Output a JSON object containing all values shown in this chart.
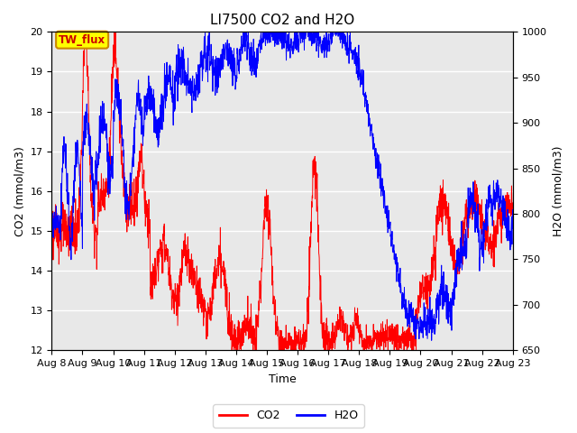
{
  "title": "LI7500 CO2 and H2O",
  "xlabel": "Time",
  "ylabel_left": "CO2 (mmol/m3)",
  "ylabel_right": "H2O (mmol/m3)",
  "co2_ylim": [
    12.0,
    20.0
  ],
  "h2o_ylim": [
    650,
    1000
  ],
  "co2_yticks": [
    12.0,
    13.0,
    14.0,
    15.0,
    16.0,
    17.0,
    18.0,
    19.0,
    20.0
  ],
  "h2o_yticks": [
    650,
    700,
    750,
    800,
    850,
    900,
    950,
    1000
  ],
  "co2_color": "#ff0000",
  "h2o_color": "#0000ff",
  "annotation_text": "TW_flux",
  "plot_bg_color": "#e8e8e8",
  "xtick_labels": [
    "Aug 8",
    "Aug 9",
    "Aug 10",
    "Aug 11",
    "Aug 12",
    "Aug 13",
    "Aug 14",
    "Aug 15",
    "Aug 16",
    "Aug 17",
    "Aug 18",
    "Aug 19",
    "Aug 20",
    "Aug 21",
    "Aug 22",
    "Aug 23"
  ],
  "title_fontsize": 11,
  "label_fontsize": 9,
  "tick_fontsize": 8
}
